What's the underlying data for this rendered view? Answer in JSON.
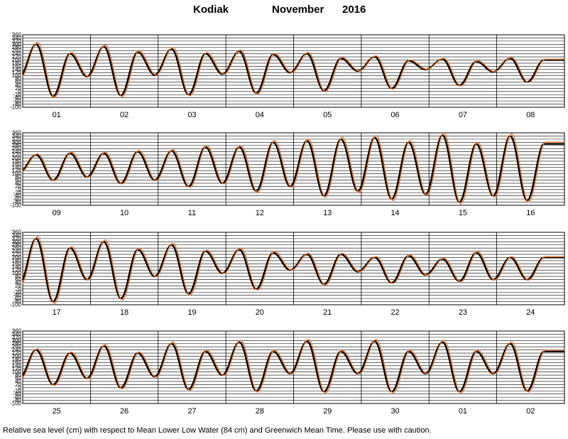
{
  "title": {
    "station": "Kodiak",
    "month": "November",
    "year": "2016"
  },
  "caption": "Relative sea level (cm) with respect to Mean Lower Low Water (84 cm) and Greenwich Mean Time. Please use with caution.",
  "colors": {
    "observed": "#000000",
    "predicted": "#e8742c",
    "grid": "#000000"
  },
  "chart_data": [
    {
      "type": "line",
      "days": [
        "01",
        "02",
        "03",
        "04",
        "05",
        "06",
        "07",
        "08"
      ],
      "ylim": [
        -100,
        360
      ],
      "yticks": [
        360,
        340,
        320,
        300,
        280,
        260,
        240,
        220,
        200,
        180,
        160,
        140,
        120,
        100,
        80,
        60,
        40,
        20,
        0,
        -20,
        -40,
        -60,
        -80,
        -100
      ],
      "day_values": {
        "high_1": [
          300,
          285,
          270,
          255,
          240,
          220,
          205,
          210
        ],
        "low_1": [
          90,
          95,
          105,
          110,
          120,
          130,
          140,
          125
        ],
        "high_2": [
          240,
          250,
          240,
          235,
          210,
          195,
          190,
          200
        ],
        "low_2": [
          -30,
          -25,
          -20,
          -10,
          5,
          20,
          40,
          60
        ]
      },
      "series": [
        {
          "name": "observed",
          "color": "#000000"
        },
        {
          "name": "predicted",
          "color": "#e8742c"
        }
      ]
    },
    {
      "type": "line",
      "days": [
        "09",
        "10",
        "11",
        "12",
        "13",
        "14",
        "15",
        "16"
      ],
      "ylim": [
        -100,
        360
      ],
      "yticks": [
        360,
        340,
        320,
        300,
        280,
        260,
        240,
        220,
        200,
        180,
        160,
        140,
        120,
        100,
        80,
        60,
        40,
        20,
        0,
        -20,
        -40,
        -60,
        -80,
        -100
      ],
      "day_values": {
        "high_1": [
          220,
          230,
          245,
          270,
          310,
          330,
          345,
          340
        ],
        "low_1": [
          110,
          80,
          60,
          40,
          20,
          -10,
          -30,
          -40
        ],
        "high_2": [
          230,
          240,
          270,
          300,
          320,
          300,
          290,
          290
        ],
        "low_2": [
          60,
          40,
          20,
          -10,
          -40,
          -60,
          -80,
          -70
        ]
      },
      "series": [
        {
          "name": "observed",
          "color": "#000000"
        },
        {
          "name": "predicted",
          "color": "#e8742c"
        }
      ]
    },
    {
      "type": "line",
      "days": [
        "17",
        "18",
        "19",
        "20",
        "21",
        "22",
        "23",
        "24"
      ],
      "ylim": [
        -100,
        360
      ],
      "yticks": [
        360,
        340,
        320,
        300,
        280,
        260,
        240,
        220,
        200,
        180,
        160,
        140,
        120,
        100,
        80,
        60,
        40,
        20,
        0,
        -20,
        -40,
        -60,
        -80,
        -100
      ],
      "day_values": {
        "high_1": [
          320,
          300,
          280,
          250,
          220,
          200,
          190,
          200
        ],
        "low_1": [
          30,
          60,
          80,
          100,
          120,
          110,
          90,
          60
        ],
        "high_2": [
          260,
          250,
          240,
          230,
          220,
          210,
          230,
          200
        ],
        "low_2": [
          -80,
          -60,
          -30,
          0,
          30,
          40,
          50,
          60
        ]
      },
      "series": [
        {
          "name": "observed",
          "color": "#000000"
        },
        {
          "name": "predicted",
          "color": "#e8742c"
        }
      ]
    },
    {
      "type": "line",
      "days": [
        "25",
        "26",
        "27",
        "28",
        "29",
        "30",
        "01",
        "02"
      ],
      "ylim": [
        -100,
        360
      ],
      "yticks": [
        360,
        340,
        320,
        300,
        280,
        260,
        240,
        220,
        200,
        180,
        160,
        140,
        120,
        100,
        80,
        60,
        40,
        20,
        0,
        -20,
        -40,
        -60,
        -80,
        -100
      ],
      "day_values": {
        "high_1": [
          240,
          265,
          280,
          290,
          295,
          295,
          290,
          280
        ],
        "low_1": [
          60,
          60,
          70,
          80,
          90,
          90,
          90,
          90
        ],
        "high_2": [
          220,
          220,
          230,
          230,
          230,
          230,
          230,
          230
        ],
        "low_2": [
          20,
          0,
          -10,
          -20,
          -25,
          -25,
          -25,
          -20
        ]
      },
      "series": [
        {
          "name": "observed",
          "color": "#000000"
        },
        {
          "name": "predicted",
          "color": "#e8742c"
        }
      ]
    }
  ]
}
